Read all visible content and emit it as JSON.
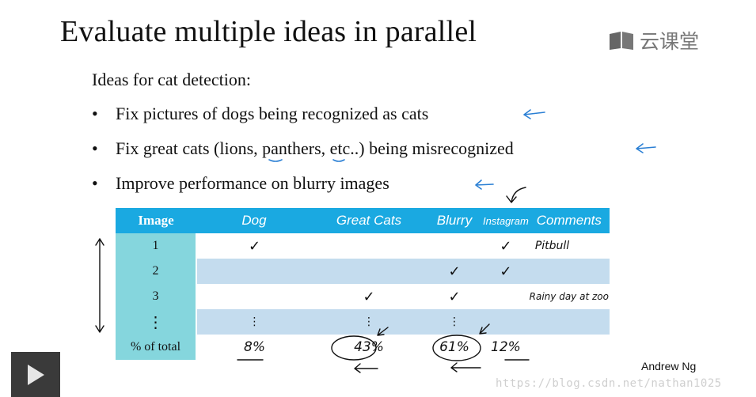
{
  "slide": {
    "title": "Evaluate multiple ideas in parallel",
    "logo_text": "云课堂",
    "intro": "Ideas for cat detection:",
    "bullets": [
      "Fix pictures of dogs being recognized as cats",
      "Fix great cats (lions, panthers, etc..) being misrecognized",
      "Improve performance on blurry images"
    ],
    "bullet_glyph": "•",
    "table": {
      "headers": [
        "Image",
        "Dog",
        "Great Cats",
        "Blurry",
        "Instagram",
        "Comments"
      ],
      "rows": [
        {
          "id": "1",
          "dog": "✓",
          "great": "",
          "blurry": "",
          "insta": "✓",
          "comment": "Pitbull"
        },
        {
          "id": "2",
          "dog": "",
          "great": "",
          "blurry": "✓",
          "insta": "✓",
          "comment": ""
        },
        {
          "id": "3",
          "dog": "",
          "great": "✓",
          "blurry": "✓",
          "insta": "",
          "comment": "Rainy day at zoo"
        },
        {
          "id": "⋮",
          "dog": "⋮",
          "great": "⋮",
          "blurry": "⋮",
          "insta": "",
          "comment": ""
        }
      ],
      "total_label": "% of total",
      "totals": {
        "dog": "8%",
        "great": "43%",
        "blurry": "61%",
        "insta": "12%"
      }
    },
    "author": "Andrew Ng",
    "watermark": "https://blog.csdn.net/nathan1025"
  },
  "player": {
    "play_icon": "play-icon"
  },
  "colors": {
    "header_blue": "#1aa9e1",
    "index_teal": "#85d6dd",
    "row_alt": "#c4dcee",
    "pen_blue": "#2a7fd4"
  }
}
